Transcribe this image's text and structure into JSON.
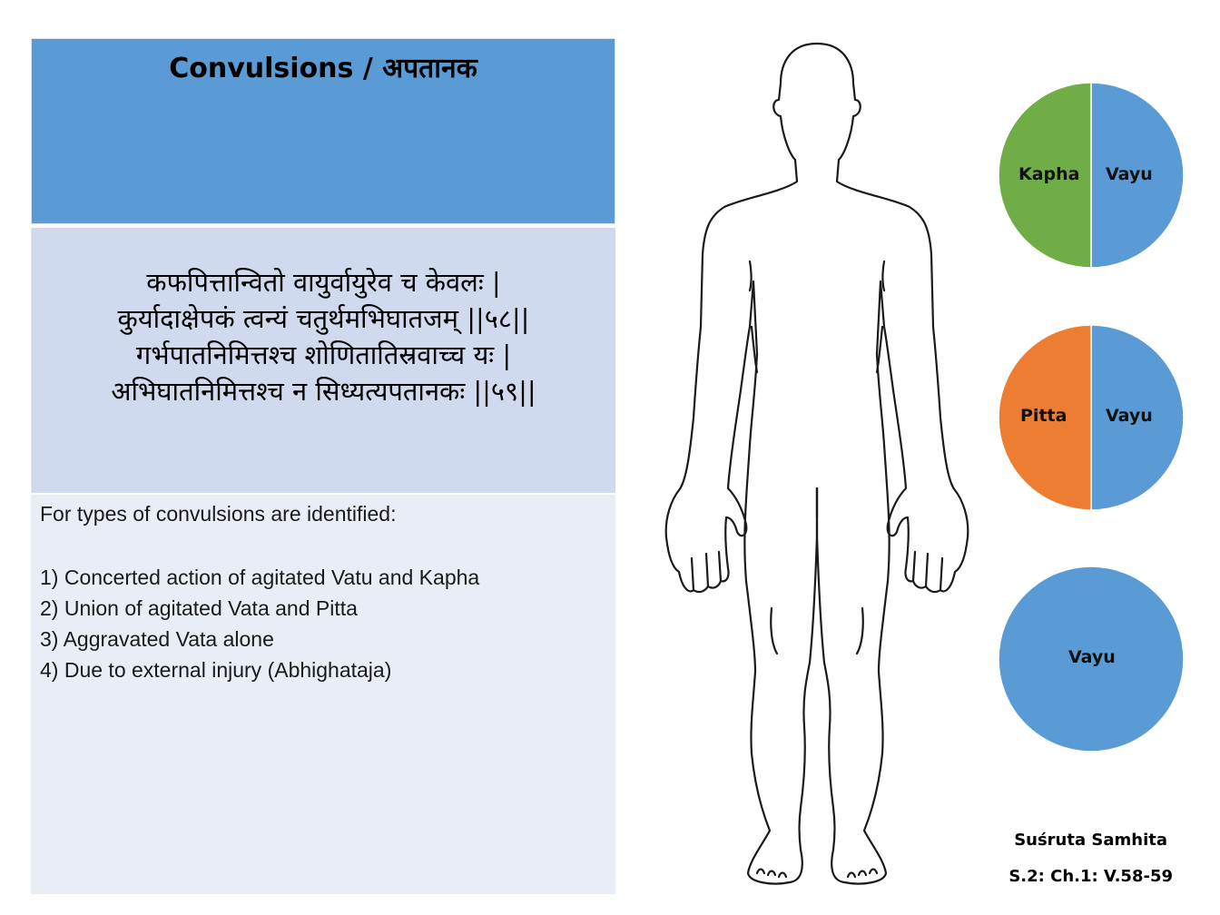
{
  "title": "Convulsions / अपतानक",
  "verse": {
    "lines": [
      "कफपित्तान्वितो वायुर्वायुरेव च केवलः |",
      "कुर्यादाक्षेपकं त्वन्यं चतुर्थमभिघातजम् ||५८||",
      "गर्भपातनिमित्तश्च शोणितातिस्रवाच्च यः |",
      "अभिघातनिमित्तश्च न सिध्यत्यपतानकः ||५९||"
    ]
  },
  "description": {
    "intro": "For types of convulsions are identified:",
    "items": [
      "1) Concerted action of agitated Vatu and Kapha",
      "2) Union of agitated Vata and Pitta",
      "3) Aggravated Vata alone",
      "4) Due to external injury (Abhighataja)"
    ]
  },
  "figure": {
    "icon": "human-body-outline-icon"
  },
  "chart_data": [
    {
      "type": "pie",
      "slices": [
        {
          "label": "Vayu",
          "value": 50,
          "color": "#5b9bd5"
        },
        {
          "label": "Kapha",
          "value": 50,
          "color": "#70ad47"
        }
      ]
    },
    {
      "type": "pie",
      "slices": [
        {
          "label": "Vayu",
          "value": 50,
          "color": "#5b9bd5"
        },
        {
          "label": "Pitta",
          "value": 50,
          "color": "#ed7d31"
        }
      ]
    },
    {
      "type": "pie",
      "slices": [
        {
          "label": "Vayu",
          "value": 100,
          "color": "#5b9bd5"
        }
      ]
    }
  ],
  "source": {
    "line1": "Suśruta Samhita",
    "line2": "S.2: Ch.1: V.58-59"
  }
}
